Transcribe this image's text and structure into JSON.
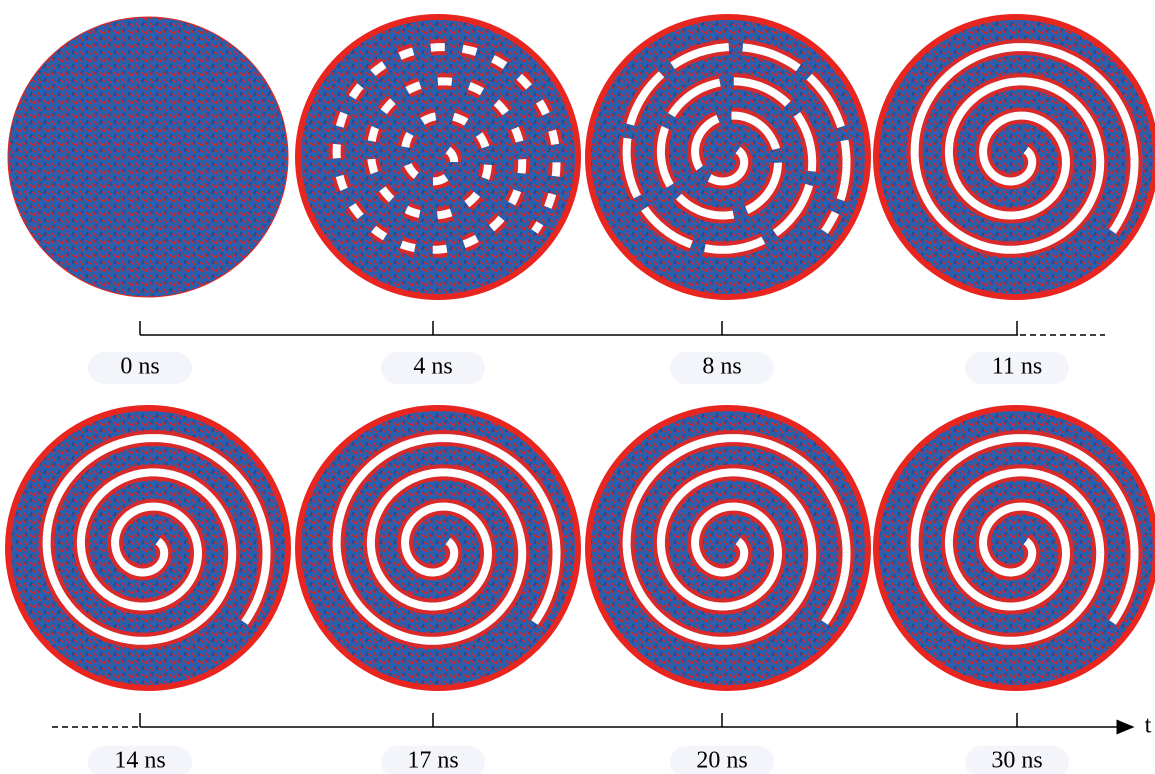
{
  "frames": [
    {
      "label": "0 ns"
    },
    {
      "label": "4 ns"
    },
    {
      "label": "8 ns"
    },
    {
      "label": "11 ns"
    },
    {
      "label": "14 ns"
    },
    {
      "label": "17 ns"
    },
    {
      "label": "20 ns"
    },
    {
      "label": "30 ns"
    }
  ],
  "axis_label": "t"
}
